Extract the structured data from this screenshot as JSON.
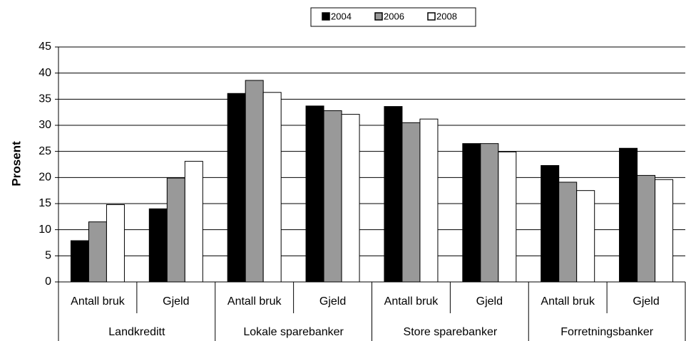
{
  "chart_data": {
    "type": "bar",
    "y_label": "Prosent",
    "categories": [
      "Antall bruk",
      "Gjeld",
      "Antall bruk",
      "Gjeld",
      "Antall bruk",
      "Gjeld",
      "Antall bruk",
      "Gjeld"
    ],
    "groups": [
      "Landkreditt",
      "Lokale sparebanker",
      "Store sparebanker",
      "Forretningsbanker"
    ],
    "series": [
      {
        "name": "2004",
        "color": "#000000",
        "values": [
          7.9,
          14,
          36.1,
          33.7,
          33.6,
          26.5,
          22.3,
          25.6
        ]
      },
      {
        "name": "2006",
        "color": "#999999",
        "values": [
          11.5,
          19.9,
          38.6,
          32.8,
          30.5,
          26.5,
          19.1,
          20.4
        ]
      },
      {
        "name": "2008",
        "color": "#ffffff",
        "values": [
          14.8,
          23.1,
          36.3,
          32.1,
          31.2,
          24.9,
          17.5,
          19.6
        ]
      }
    ],
    "ylim": [
      0,
      45
    ],
    "yticks": [
      0,
      5,
      10,
      15,
      20,
      25,
      30,
      35,
      40,
      45
    ],
    "grid": true
  }
}
